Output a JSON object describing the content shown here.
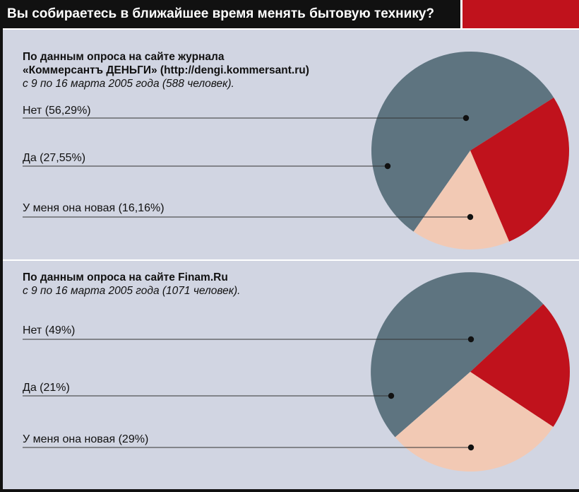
{
  "title": "Вы собираетесь в ближайшее время менять бытовую технику?",
  "colors": {
    "no": "#5e7480",
    "yes": "#c0121c",
    "have_new": "#f2c9b4",
    "background": "#d1d5e2"
  },
  "chart_data": [
    {
      "type": "pie",
      "source_line1": "По данным опроса на сайте журнала",
      "source_line2": "«Коммерсантъ ДЕНЬГИ» (http://dengi.kommersant.ru)",
      "source_line3": "с 9 по 16 марта 2005 года (588 человек).",
      "slices": [
        {
          "label": "Нет (56,29%)",
          "value": 56.29
        },
        {
          "label": "Да (27,55%)",
          "value": 27.55
        },
        {
          "label": "У меня она новая (16,16%)",
          "value": 16.16
        }
      ]
    },
    {
      "type": "pie",
      "source_line1": "По данным опроса на сайте Finam.Ru",
      "source_line2": "с 9 по 16 марта 2005 года (1071 человек).",
      "slices": [
        {
          "label": "Нет (49%)",
          "value": 49
        },
        {
          "label": "Да (21%)",
          "value": 21
        },
        {
          "label": "У меня она новая (29%)",
          "value": 29
        }
      ]
    }
  ]
}
